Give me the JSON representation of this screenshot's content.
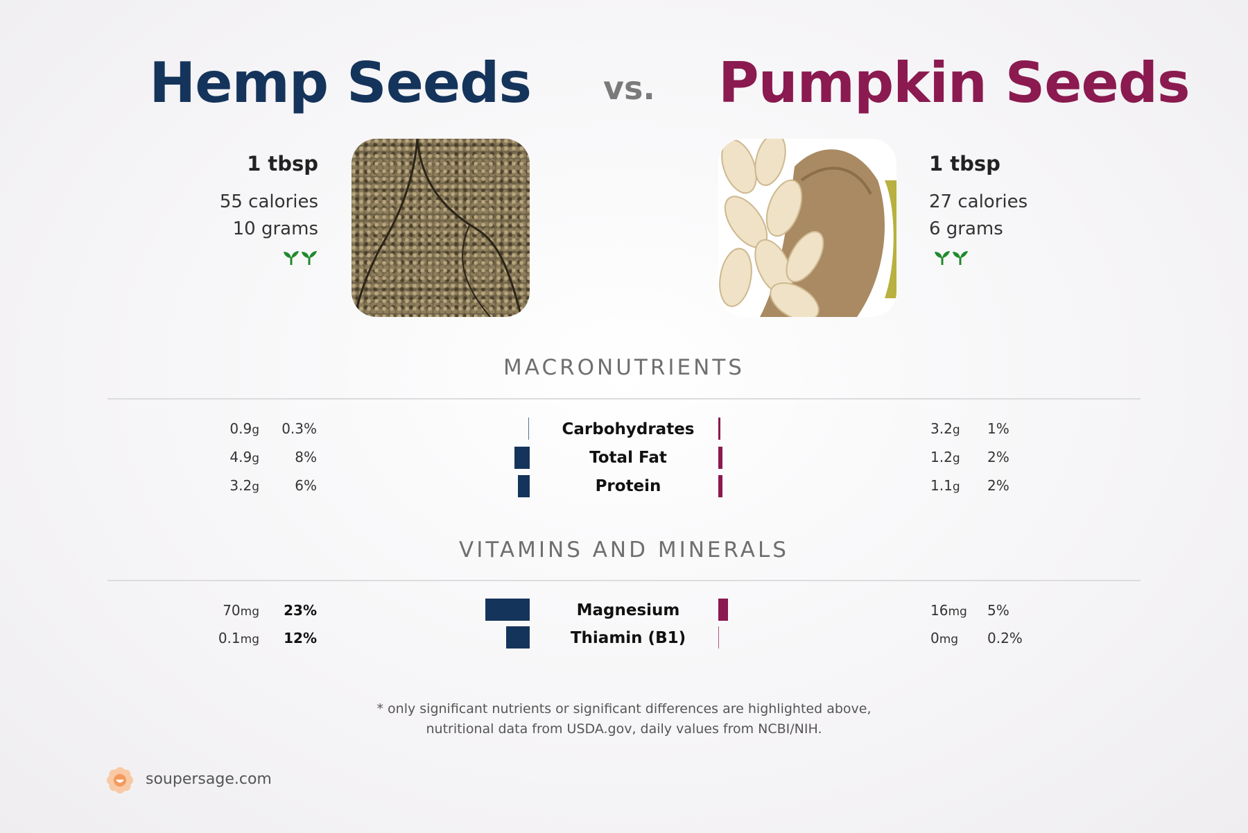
{
  "left_food": {
    "name": "Hemp Seeds",
    "serving": "1 tbsp",
    "calories": "55 calories",
    "grams": "10 grams",
    "color": "#15345b",
    "icon": "sprout-icon"
  },
  "right_food": {
    "name": "Pumpkin Seeds",
    "serving": "1 tbsp",
    "calories": "27 calories",
    "grams": "6 grams",
    "color": "#8a1a4f",
    "icon": "sprout-icon"
  },
  "vs_label": "vs.",
  "sections": {
    "macros_title": "MACRONUTRIENTS",
    "vitamins_title": "VITAMINS AND MINERALS"
  },
  "macros": [
    {
      "name": "Carbohydrates",
      "left_amount": "0.9",
      "left_unit": "g",
      "left_pct": "0.3%",
      "left_pct_value": 0.3,
      "right_amount": "3.2",
      "right_unit": "g",
      "right_pct": "1%",
      "right_pct_value": 1
    },
    {
      "name": "Total Fat",
      "left_amount": "4.9",
      "left_unit": "g",
      "left_pct": "8%",
      "left_pct_value": 8,
      "right_amount": "1.2",
      "right_unit": "g",
      "right_pct": "2%",
      "right_pct_value": 2
    },
    {
      "name": "Protein",
      "left_amount": "3.2",
      "left_unit": "g",
      "left_pct": "6%",
      "left_pct_value": 6,
      "right_amount": "1.1",
      "right_unit": "g",
      "right_pct": "2%",
      "right_pct_value": 2
    }
  ],
  "vitamins": [
    {
      "name": "Magnesium",
      "left_amount": "70",
      "left_unit": "mg",
      "left_pct": "23%",
      "left_pct_value": 23,
      "right_amount": "16",
      "right_unit": "mg",
      "right_pct": "5%",
      "right_pct_value": 5
    },
    {
      "name": "Thiamin (B1)",
      "left_amount": "0.1",
      "left_unit": "mg",
      "left_pct": "12%",
      "left_pct_value": 12,
      "right_amount": "0",
      "right_unit": "mg",
      "right_pct": "0.2%",
      "right_pct_value": 0.2
    }
  ],
  "footnote": {
    "line1": "* only significant nutrients or significant differences are highlighted above,",
    "line2": "nutritional data from USDA.gov, daily values from NCBI/NIH."
  },
  "brand": {
    "text": "soupersage.com",
    "icon": "flower-logo-icon"
  }
}
